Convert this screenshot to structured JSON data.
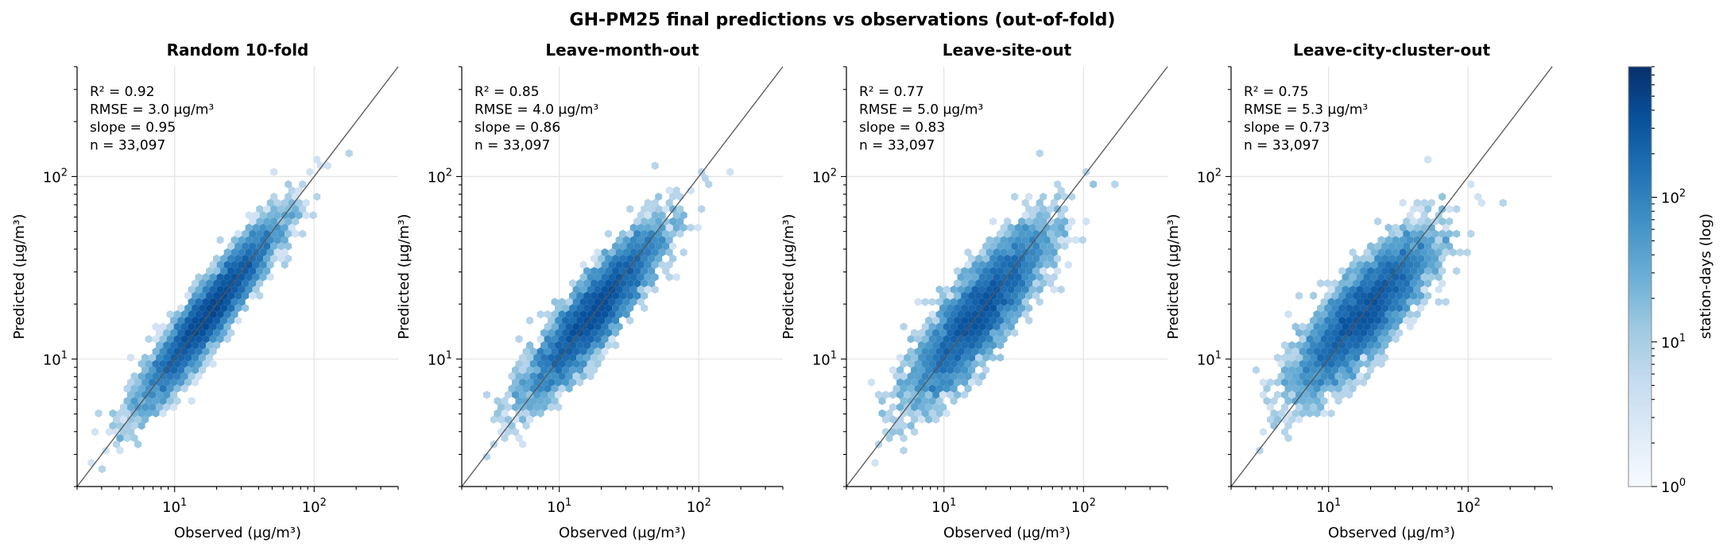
{
  "figure": {
    "title": "GH-PM25 final predictions vs observations (out-of-fold)"
  },
  "chart_data": [
    {
      "type": "scatter",
      "subtype": "hexbin",
      "title": "Random 10-fold",
      "xlabel": "Observed (µg/m³)",
      "ylabel": "Predicted (µg/m³)",
      "xscale": "log",
      "yscale": "log",
      "xlim": [
        2,
        400
      ],
      "ylim": [
        2,
        400
      ],
      "x_ticks": [
        "10^1",
        "10^2"
      ],
      "y_ticks": [
        "10^1",
        "10^2"
      ],
      "identity_line": true,
      "grid": true,
      "stats": [
        "R² = 0.92",
        "RMSE = 3.0 µg/m³",
        "slope = 0.95",
        "n = 33,097"
      ],
      "density": {
        "slope": 0.95,
        "spread": 0.085,
        "anchor": 20
      }
    },
    {
      "type": "scatter",
      "subtype": "hexbin",
      "title": "Leave-month-out",
      "xlabel": "Observed (µg/m³)",
      "ylabel": "Predicted (µg/m³)",
      "xscale": "log",
      "yscale": "log",
      "xlim": [
        2,
        400
      ],
      "ylim": [
        2,
        400
      ],
      "x_ticks": [
        "10^1",
        "10^2"
      ],
      "y_ticks": [
        "10^1",
        "10^2"
      ],
      "identity_line": true,
      "grid": true,
      "stats": [
        "R² = 0.85",
        "RMSE = 4.0 µg/m³",
        "slope = 0.86",
        "n = 33,097"
      ],
      "density": {
        "slope": 0.86,
        "spread": 0.1,
        "anchor": 20
      }
    },
    {
      "type": "scatter",
      "subtype": "hexbin",
      "title": "Leave-site-out",
      "xlabel": "Observed (µg/m³)",
      "ylabel": "Predicted (µg/m³)",
      "xscale": "log",
      "yscale": "log",
      "xlim": [
        2,
        400
      ],
      "ylim": [
        2,
        400
      ],
      "x_ticks": [
        "10^1",
        "10^2"
      ],
      "y_ticks": [
        "10^1",
        "10^2"
      ],
      "identity_line": true,
      "grid": true,
      "stats": [
        "R² = 0.77",
        "RMSE = 5.0 µg/m³",
        "slope = 0.83",
        "n = 33,097"
      ],
      "density": {
        "slope": 0.83,
        "spread": 0.12,
        "anchor": 18
      }
    },
    {
      "type": "scatter",
      "subtype": "hexbin",
      "title": "Leave-city-cluster-out",
      "xlabel": "Observed (µg/m³)",
      "ylabel": "Predicted (µg/m³)",
      "xscale": "log",
      "yscale": "log",
      "xlim": [
        2,
        400
      ],
      "ylim": [
        2,
        400
      ],
      "x_ticks": [
        "10^1",
        "10^2"
      ],
      "y_ticks": [
        "10^1",
        "10^2"
      ],
      "identity_line": true,
      "grid": true,
      "stats": [
        "R² = 0.75",
        "RMSE = 5.3 µg/m³",
        "slope = 0.73",
        "n = 33,097"
      ],
      "density": {
        "slope": 0.73,
        "spread": 0.12,
        "anchor": 18
      }
    }
  ],
  "colorbar": {
    "label": "station-days (log)",
    "scale": "log",
    "range": [
      1,
      800
    ],
    "ticks": [
      "10^0",
      "10^1",
      "10^2"
    ],
    "colors": [
      "#f7fbff",
      "#deebf7",
      "#c6dbef",
      "#9ecae1",
      "#6baed6",
      "#4292c6",
      "#2171b5",
      "#08519c",
      "#08306b"
    ]
  }
}
